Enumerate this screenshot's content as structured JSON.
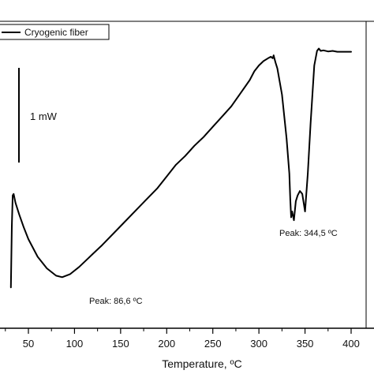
{
  "chart_data": {
    "type": "line",
    "xlabel": "Temperature, ºC",
    "xlim": [
      28,
      410
    ],
    "x_ticks": [
      50,
      100,
      150,
      200,
      250,
      300,
      350,
      400
    ],
    "y_axis_visible": false,
    "legend": {
      "placement": "top-left",
      "entries": [
        "Cryogenic fiber"
      ]
    },
    "scale_bar": {
      "label": "1 mW"
    },
    "annotations": [
      {
        "text": "Peak: 86,6 ºC",
        "x": 86.6
      },
      {
        "text": "Peak: 344,5 ºC",
        "x": 344.5
      }
    ],
    "series": [
      {
        "name": "Cryogenic fiber",
        "x": [
          31,
          32,
          33,
          34,
          36,
          40,
          45,
          50,
          60,
          70,
          80,
          86.6,
          95,
          105,
          115,
          120,
          130,
          150,
          170,
          190,
          200,
          210,
          220,
          230,
          240,
          250,
          260,
          270,
          280,
          290,
          295,
          300,
          305,
          310,
          313,
          315,
          316,
          317,
          318,
          320,
          325,
          330,
          333,
          334,
          335,
          336,
          338,
          340,
          342,
          344.5,
          347,
          350,
          353,
          356,
          360,
          363,
          365,
          367,
          370,
          375,
          380,
          385,
          390,
          395,
          400
        ],
        "y": [
          -2.6,
          -0.5,
          0.55,
          0.6,
          0.3,
          -0.1,
          -0.55,
          -0.95,
          -1.55,
          -1.95,
          -2.2,
          -2.25,
          -2.15,
          -1.9,
          -1.6,
          -1.45,
          -1.15,
          -0.5,
          0.15,
          0.8,
          1.2,
          1.6,
          1.9,
          2.25,
          2.55,
          2.9,
          3.25,
          3.6,
          4.05,
          4.5,
          4.8,
          5.0,
          5.15,
          5.25,
          5.3,
          5.25,
          5.35,
          5.22,
          5.1,
          4.9,
          4.0,
          2.5,
          1.3,
          0.4,
          -0.2,
          0.0,
          -0.3,
          0.35,
          0.55,
          0.7,
          0.6,
          0.0,
          1.3,
          3.0,
          5.0,
          5.5,
          5.58,
          5.5,
          5.52,
          5.48,
          5.5,
          5.47,
          5.47,
          5.47,
          5.47
        ]
      }
    ]
  }
}
